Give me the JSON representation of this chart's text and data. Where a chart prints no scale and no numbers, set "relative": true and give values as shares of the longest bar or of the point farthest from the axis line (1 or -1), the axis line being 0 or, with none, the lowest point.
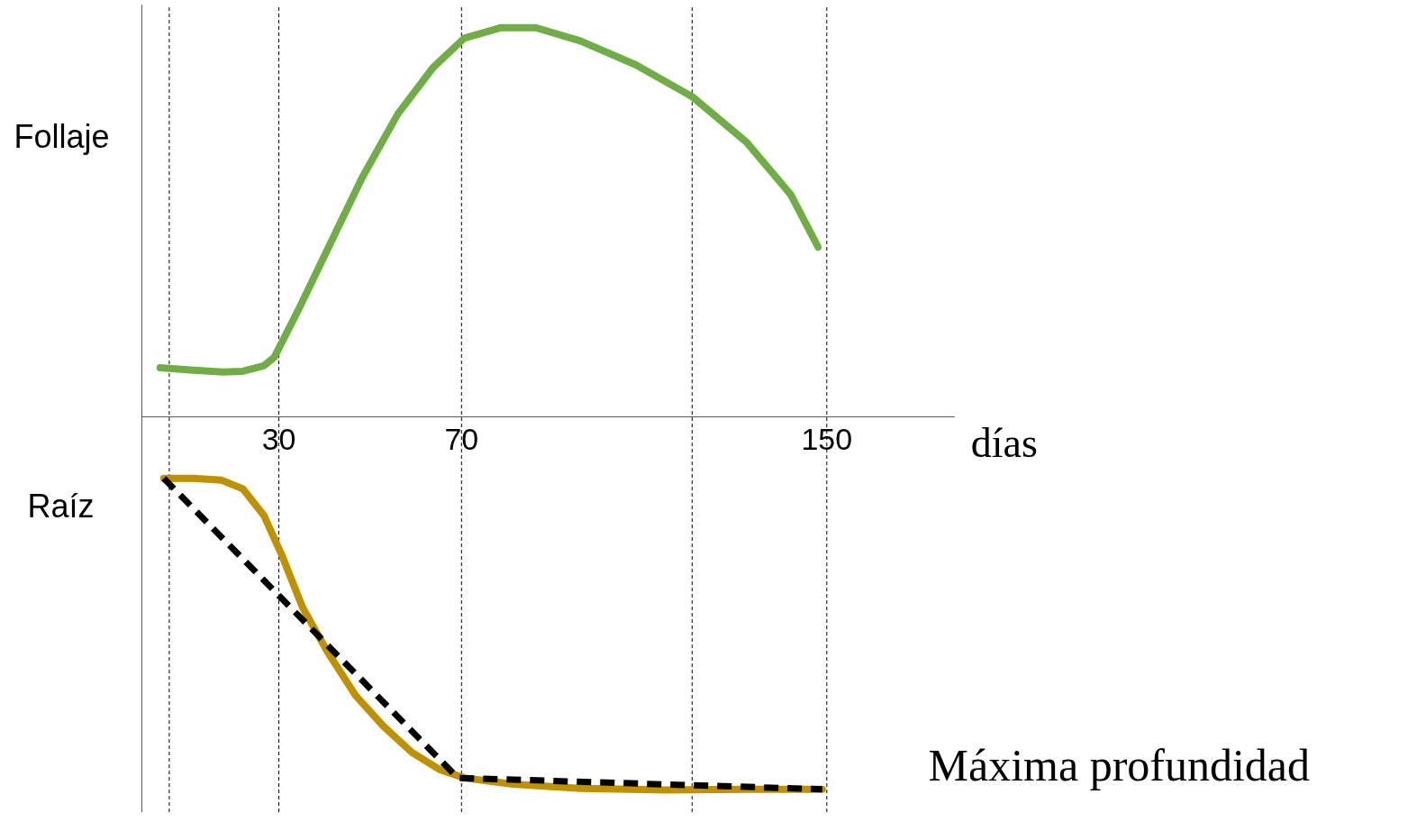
{
  "chart_data": {
    "type": "line",
    "relative": true,
    "xlabel": "días",
    "xlim": [
      0,
      178
    ],
    "xticks": [
      30,
      70,
      150
    ],
    "annotations": [
      "Follaje",
      "Raíz",
      "Máxima profundidad"
    ],
    "series": [
      {
        "color": "#70ad47",
        "x": [
          4.0,
          11.3,
          17.8,
          22.1,
          26.7,
          29.0,
          34.4,
          40.6,
          48.3,
          56.1,
          63.8,
          70.6,
          78.7,
          86.3,
          96.0,
          108.1,
          120.5,
          132.4,
          142.1,
          148.1
        ],
        "values": [
          0.126,
          0.12,
          0.115,
          0.117,
          0.131,
          0.153,
          0.278,
          0.429,
          0.616,
          0.779,
          0.898,
          0.973,
          1.0,
          1.0,
          0.966,
          0.905,
          0.823,
          0.706,
          0.571,
          0.436
        ]
      },
      {
        "color": "#bf9000",
        "x": [
          4.8,
          11.3,
          17.5,
          22.1,
          26.7,
          30.6,
          35.2,
          40.6,
          46.8,
          52.9,
          59.1,
          65.3,
          70.6,
          81.2,
          96.0,
          115.1,
          132.4,
          149.0
        ],
        "values": [
          -0.158,
          -0.158,
          -0.163,
          -0.185,
          -0.253,
          -0.354,
          -0.49,
          -0.603,
          -0.716,
          -0.795,
          -0.862,
          -0.907,
          -0.928,
          -0.944,
          -0.955,
          -0.959,
          -0.957,
          -0.957
        ]
      },
      {
        "color": "#000000",
        "line_style": "dashed",
        "x": [
          4.8,
          69.2,
          149.0
        ],
        "values": [
          -0.158,
          -0.928,
          -0.957
        ]
      }
    ],
    "ref_lines": [
      {
        "axis": "x",
        "value": 6,
        "color": "#000000",
        "line_style": "dashed"
      },
      {
        "axis": "x",
        "value": 30,
        "color": "#000000",
        "line_style": "dashed"
      },
      {
        "axis": "x",
        "value": 70,
        "color": "#000000",
        "line_style": "dashed"
      },
      {
        "axis": "x",
        "value": 120.5,
        "color": "#000000",
        "line_style": "dashed"
      },
      {
        "axis": "x",
        "value": 150,
        "color": "#000000",
        "line_style": "dashed"
      }
    ],
    "grid": false
  }
}
